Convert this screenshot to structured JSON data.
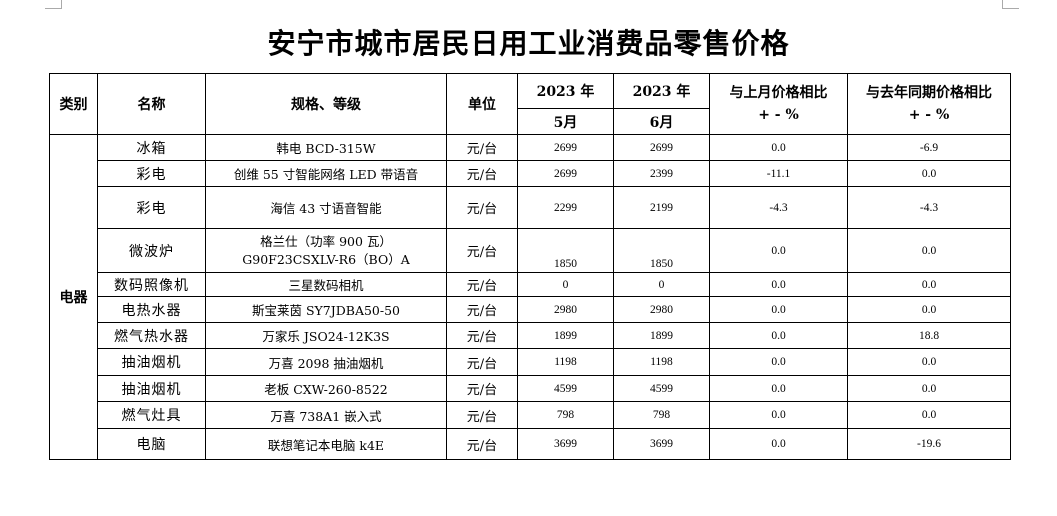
{
  "title": "安宁市城市居民日用工业消费品零售价格",
  "headers": {
    "category": "类别",
    "name": "名称",
    "spec": "规格、等级",
    "unit": "单位",
    "year_1": "2023 年",
    "month_1": "5月",
    "year_2": "2023 年",
    "month_2": "6月",
    "mom_line1": "与上月价格相比",
    "mom_line2": "+ - %",
    "yoy_line1": "与去年同期价格相比",
    "yoy_line2": "+ - %"
  },
  "category": "电器",
  "rows": [
    {
      "name": "冰箱",
      "spec": "韩电 BCD-315W",
      "unit": "元/台",
      "may": "2699",
      "june": "2699",
      "mom": "0.0",
      "yoy": "-6.9"
    },
    {
      "name": "彩电",
      "spec": "创维 55 寸智能网络 LED 带语音",
      "unit": "元/台",
      "may": "2699",
      "june": "2399",
      "mom": "-11.1",
      "yoy": "0.0"
    },
    {
      "name": "彩电",
      "spec": "海信 43 寸语音智能",
      "unit": "元/台",
      "may": "2299",
      "june": "2199",
      "mom": "-4.3",
      "yoy": "-4.3"
    },
    {
      "name": "微波炉",
      "spec_line1": "格兰仕（功率 900 瓦）",
      "spec_line2": "G90F23CSXLV-R6（BO）A",
      "unit": "元/台",
      "may": "1850",
      "june": "1850",
      "mom": "0.0",
      "yoy": "0.0"
    },
    {
      "name": "数码照像机",
      "spec": "三星数码相机",
      "unit": "元/台",
      "may": "0",
      "june": "0",
      "mom": "0.0",
      "yoy": "0.0"
    },
    {
      "name": "电热水器",
      "spec": "斯宝莱茵 SY7JDBA50-50",
      "unit": "元/台",
      "may": "2980",
      "june": "2980",
      "mom": "0.0",
      "yoy": "0.0"
    },
    {
      "name": "燃气热水器",
      "spec": "万家乐 JSO24-12K3S",
      "unit": "元/台",
      "may": "1899",
      "june": "1899",
      "mom": "0.0",
      "yoy": "18.8"
    },
    {
      "name": "抽油烟机",
      "spec": "万喜 2098 抽油烟机",
      "unit": "元/台",
      "may": "1198",
      "june": "1198",
      "mom": "0.0",
      "yoy": "0.0"
    },
    {
      "name": "抽油烟机",
      "spec": "老板 CXW-260-8522",
      "unit": "元/台",
      "may": "4599",
      "june": "4599",
      "mom": "0.0",
      "yoy": "0.0"
    },
    {
      "name": "燃气灶具",
      "spec": "万喜 738A1 嵌入式",
      "unit": "元/台",
      "may": "798",
      "june": "798",
      "mom": "0.0",
      "yoy": "0.0"
    },
    {
      "name": "电脑",
      "spec": "联想笔记本电脑 k4E",
      "unit": "元/台",
      "may": "3699",
      "june": "3699",
      "mom": "0.0",
      "yoy": "-19.6"
    }
  ]
}
